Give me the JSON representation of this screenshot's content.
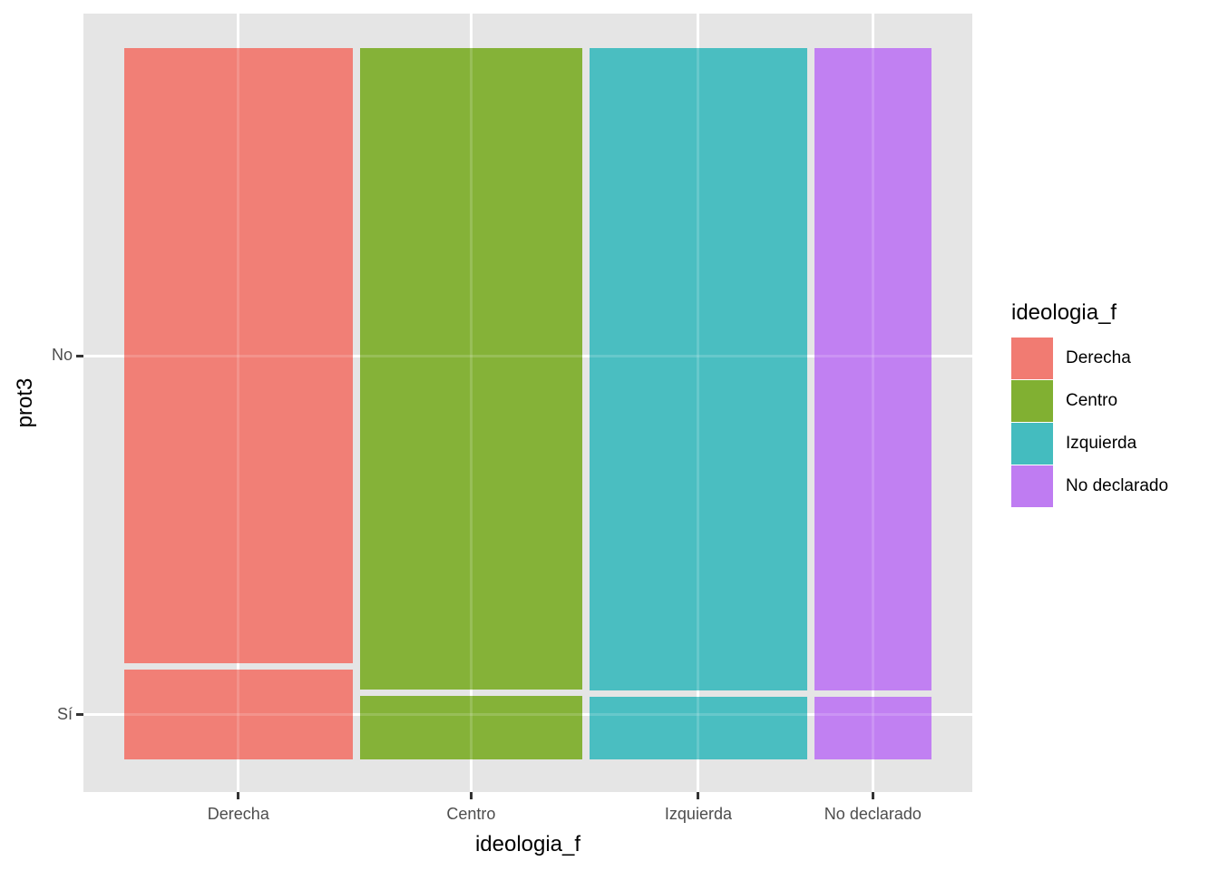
{
  "figure": {
    "background": "#FFFFFF",
    "panel_background": "#E5E5E5",
    "gridline_color": "#FFFFFF",
    "tick_mark_color": "#333333",
    "tick_label_color": "#4D4D4D",
    "title_color": "#000000"
  },
  "axes": {
    "x": {
      "title": "ideologia_f"
    },
    "y": {
      "title": "prot3"
    }
  },
  "legend": {
    "title": "ideologia_f",
    "position": "right",
    "items": [
      {
        "label": "Derecha",
        "color": "#F17B72"
      },
      {
        "label": "Centro",
        "color": "#81B032"
      },
      {
        "label": "Izquierda",
        "color": "#44BCBF"
      },
      {
        "label": "No declarado",
        "color": "#BF7CF2"
      }
    ]
  },
  "chart_data": {
    "type": "mosaic",
    "x_variable": "ideologia_f",
    "y_variable": "prot3",
    "x_categories": [
      "Derecha",
      "Centro",
      "Izquierda",
      "No declarado"
    ],
    "y_categories_top_to_bottom": [
      "No",
      "Sí"
    ],
    "column_width_shares": [
      0.29,
      0.283,
      0.276,
      0.149
    ],
    "si_share_within_column": [
      0.127,
      0.09,
      0.089,
      0.089
    ],
    "no_share_within_column": [
      0.873,
      0.91,
      0.911,
      0.911
    ],
    "colors_by_column": [
      "#F17B72",
      "#81B032",
      "#44BCBF",
      "#BF7CF2"
    ],
    "grid": "major gridlines white, at category tick positions",
    "legend_position": "right"
  }
}
